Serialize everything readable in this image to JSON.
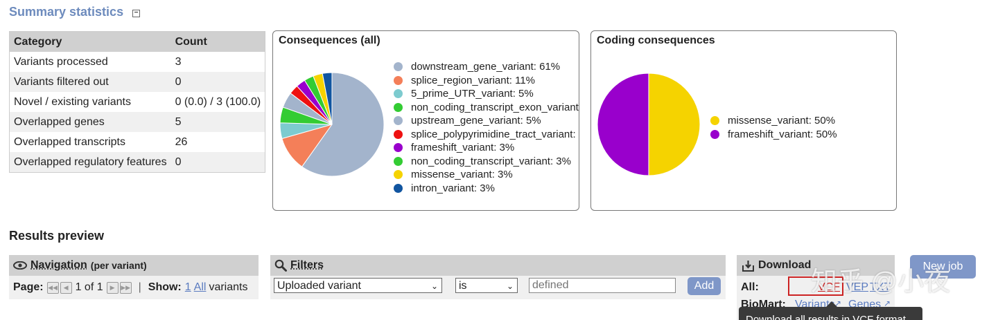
{
  "summary": {
    "title": "Summary statistics",
    "toggle": "−"
  },
  "stats_table": {
    "headers": [
      "Category",
      "Count"
    ],
    "rows": [
      [
        "Variants processed",
        "3"
      ],
      [
        "Variants filtered out",
        "0"
      ],
      [
        "Novel / existing variants",
        "0 (0.0) / 3 (100.0)"
      ],
      [
        "Overlapped genes",
        "5"
      ],
      [
        "Overlapped transcripts",
        "26"
      ],
      [
        "Overlapped regulatory features",
        "0"
      ]
    ]
  },
  "chart_data": [
    {
      "type": "pie",
      "title": "Consequences (all)",
      "categories": [
        "downstream_gene_variant",
        "splice_region_variant",
        "5_prime_UTR_variant",
        "non_coding_transcript_exon_variant",
        "upstream_gene_variant",
        "splice_polypyrimidine_tract_variant",
        "frameshift_variant",
        "non_coding_transcript_variant",
        "missense_variant",
        "intron_variant"
      ],
      "values": [
        61,
        11,
        5,
        5,
        5,
        3,
        3,
        3,
        3,
        3
      ],
      "colors": [
        "#a3b4cc",
        "#f47f59",
        "#7dcbcf",
        "#33cc33",
        "#a3b4cc",
        "#ee1111",
        "#9900cc",
        "#33cc33",
        "#f5d300",
        "#1155a0"
      ],
      "legend": [
        "downstream_gene_variant: 61%",
        "splice_region_variant: 11%",
        "5_prime_UTR_variant: 5%",
        "non_coding_transcript_exon_variant",
        "upstream_gene_variant: 5%",
        "splice_polypyrimidine_tract_variant:",
        "frameshift_variant: 3%",
        "non_coding_transcript_variant: 3%",
        "missense_variant: 3%",
        "intron_variant: 3%"
      ],
      "legend_position": "right"
    },
    {
      "type": "pie",
      "title": "Coding consequences",
      "categories": [
        "missense_variant",
        "frameshift_variant"
      ],
      "values": [
        50,
        50
      ],
      "colors": [
        "#f5d300",
        "#9900cc"
      ],
      "legend": [
        "missense_variant: 50%",
        "frameshift_variant: 50%"
      ],
      "legend_position": "right"
    }
  ],
  "results": {
    "title": "Results preview"
  },
  "navigation": {
    "label": "Navigation",
    "sub": "(per variant)",
    "page_label": "Page:",
    "first_icon": "first-page-icon",
    "prev_icon": "prev-page-icon",
    "page_of": "1 of 1",
    "next_icon": "next-page-icon",
    "last_icon": "last-page-icon",
    "separator": "|",
    "show_label": "Show:",
    "show_one": "1",
    "show_all": "All",
    "show_suffix": "variants"
  },
  "filters": {
    "label": "Filters",
    "field_value": "Uploaded variant",
    "operator_value": "is",
    "value_placeholder": "defined",
    "add_label": "Add"
  },
  "download": {
    "label": "Download",
    "all_label": "All:",
    "vcf": "VCF",
    "vep": "VEP",
    "txt": "TXT",
    "biomart_label": "BioMart:",
    "variants_link": "Variants",
    "genes_link": "Genes",
    "tooltip": "Download all results in VCF format",
    "new_job_label": "New job"
  },
  "watermark": "知乎 @小夜",
  "colors": {
    "accent": "#6d8bbd",
    "link": "#5a7bc0",
    "button": "#7f97c8"
  }
}
